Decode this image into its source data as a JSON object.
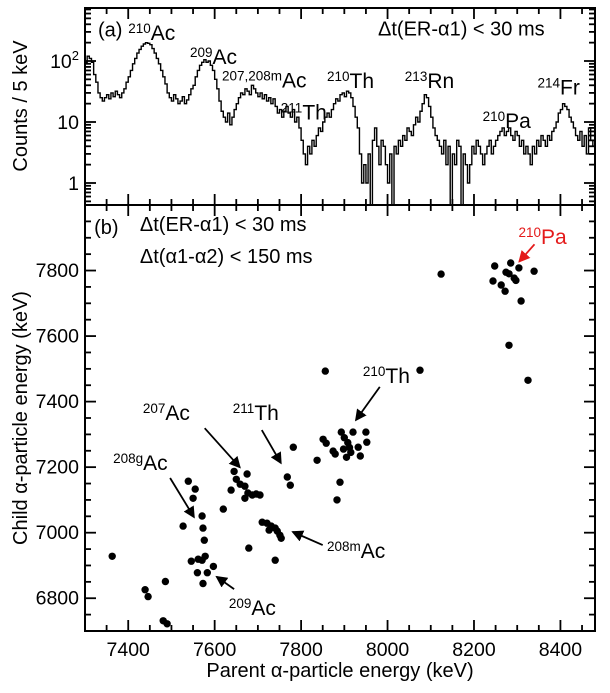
{
  "figure": {
    "background": "#ffffff",
    "ink_color": "#000000",
    "accent_red": "#e41a1a"
  },
  "chart_data": [
    {
      "type": "line",
      "panel": "a",
      "subtype": "histogram-steps",
      "ylabel": "Counts / 5 keV",
      "xlabel": "",
      "xlim": [
        7300,
        8480
      ],
      "ylog_range": [
        0.44,
        740
      ],
      "x_major_ticks": [
        7400,
        7600,
        7800,
        8000,
        8200,
        8400
      ],
      "x_minor_step": 50,
      "y_ticks": [
        {
          "value": 100,
          "label_main": "10",
          "label_sup": "2"
        },
        {
          "value": 10,
          "label_main": "10",
          "label_sup": ""
        },
        {
          "value": 1,
          "label_main": "1",
          "label_sup": ""
        }
      ],
      "histogram": {
        "bin_start": 7300,
        "bin_width": 5,
        "counts": [
          95,
          120,
          110,
          95,
          60,
          45,
          30,
          25,
          22,
          25,
          28,
          24,
          30,
          26,
          32,
          28,
          25,
          30,
          35,
          45,
          55,
          70,
          90,
          110,
          135,
          155,
          175,
          190,
          200,
          195,
          185,
          160,
          135,
          110,
          90,
          70,
          55,
          42,
          30,
          25,
          22,
          28,
          24,
          20,
          22,
          26,
          20,
          23,
          28,
          35,
          40,
          55,
          70,
          85,
          95,
          105,
          95,
          100,
          85,
          70,
          50,
          35,
          22,
          15,
          12,
          10,
          14,
          9,
          12,
          16,
          20,
          25,
          30,
          28,
          35,
          32,
          28,
          40,
          35,
          30,
          26,
          30,
          24,
          28,
          22,
          25,
          20,
          24,
          18,
          14,
          16,
          12,
          15,
          18,
          14,
          12,
          16,
          10,
          12,
          8,
          5,
          3,
          2,
          4,
          3,
          5,
          4,
          6,
          8,
          7,
          10,
          12,
          14,
          12,
          16,
          20,
          24,
          22,
          28,
          30,
          26,
          32,
          30,
          25,
          18,
          12,
          8,
          3,
          1,
          2,
          1,
          3,
          0,
          5,
          8,
          4,
          2,
          5,
          4,
          2,
          1,
          3,
          0,
          4,
          3,
          5,
          4,
          6,
          5,
          8,
          7,
          6,
          9,
          12,
          10,
          15,
          20,
          28,
          25,
          18,
          12,
          8,
          6,
          5,
          4,
          3,
          5,
          2,
          4,
          0,
          3,
          2,
          5,
          4,
          0,
          3,
          2,
          1,
          2,
          4,
          3,
          5,
          4,
          3,
          2,
          3,
          4,
          5,
          3,
          4,
          5,
          6,
          7,
          8,
          6,
          7,
          8,
          6,
          5,
          7,
          6,
          4,
          5,
          3,
          4,
          3,
          2,
          4,
          3,
          5,
          4,
          6,
          5,
          4,
          6,
          5,
          7,
          8,
          10,
          14,
          16,
          20,
          18,
          16,
          12,
          10,
          8,
          6,
          5,
          7,
          4,
          6,
          3,
          8,
          5,
          4
        ]
      },
      "annotations": [
        {
          "sup": "",
          "main": "(a)",
          "x": 7330,
          "y": 250
        },
        {
          "sup": "210",
          "main": "Ac",
          "x": 7400,
          "y": 220
        },
        {
          "sup": "209",
          "main": "Ac",
          "x": 7543,
          "y": 90
        },
        {
          "sup": "207,208m",
          "main": "Ac",
          "x": 7617,
          "y": 37
        },
        {
          "sup": "211",
          "main": "Th",
          "x": 7753,
          "y": 11
        },
        {
          "sup": "210",
          "main": "Th",
          "x": 7860,
          "y": 36
        },
        {
          "sup": "213",
          "main": "Rn",
          "x": 8040,
          "y": 36
        },
        {
          "sup": "210",
          "main": "Pa",
          "x": 8220,
          "y": 8
        },
        {
          "sup": "214",
          "main": "Fr",
          "x": 8347,
          "y": 28
        },
        {
          "sup": "",
          "main": "Δt(ER-α1) < 30 ms",
          "x": 7978,
          "y": 260
        }
      ]
    },
    {
      "type": "scatter",
      "panel": "b",
      "xlabel": "Parent α-particle energy (keV)",
      "ylabel": "Child α-particle energy (keV)",
      "xlim": [
        7300,
        8480
      ],
      "ylim": [
        6700,
        8000
      ],
      "x_major_ticks": [
        7400,
        7600,
        7800,
        8000,
        8200,
        8400
      ],
      "y_major_ticks": [
        6800,
        7000,
        7200,
        7400,
        7600,
        7800
      ],
      "minor_step": 50,
      "marker": {
        "shape": "circle",
        "radius": 3.7,
        "color": "#000000"
      },
      "points": [
        [
          8124,
          7789
        ],
        [
          8248,
          7814
        ],
        [
          8285,
          7823
        ],
        [
          8304,
          7808
        ],
        [
          8339,
          7798
        ],
        [
          8274,
          7795
        ],
        [
          8281,
          7790
        ],
        [
          8293,
          7777
        ],
        [
          8297,
          7770
        ],
        [
          8244,
          7768
        ],
        [
          8263,
          7756
        ],
        [
          8272,
          7737
        ],
        [
          8309,
          7707
        ],
        [
          8281,
          7572
        ],
        [
          8325,
          7465
        ],
        [
          7856,
          7493
        ],
        [
          8075,
          7496
        ],
        [
          7837,
          7221
        ],
        [
          7851,
          7285
        ],
        [
          7858,
          7273
        ],
        [
          7874,
          7249
        ],
        [
          7879,
          7240
        ],
        [
          7893,
          7307
        ],
        [
          7900,
          7290
        ],
        [
          7908,
          7275
        ],
        [
          7912,
          7260
        ],
        [
          7898,
          7255
        ],
        [
          7915,
          7245
        ],
        [
          7905,
          7230
        ],
        [
          7920,
          7307
        ],
        [
          7932,
          7261
        ],
        [
          7937,
          7234
        ],
        [
          7950,
          7307
        ],
        [
          7952,
          7276
        ],
        [
          7890,
          7154
        ],
        [
          7883,
          7100
        ],
        [
          7782,
          7261
        ],
        [
          7768,
          7170
        ],
        [
          7775,
          7145
        ],
        [
          7645,
          7187
        ],
        [
          7675,
          7179
        ],
        [
          7638,
          7130
        ],
        [
          7650,
          7163
        ],
        [
          7659,
          7148
        ],
        [
          7670,
          7142
        ],
        [
          7677,
          7121
        ],
        [
          7687,
          7115
        ],
        [
          7696,
          7118
        ],
        [
          7705,
          7115
        ],
        [
          7670,
          7105
        ],
        [
          7620,
          7072
        ],
        [
          7539,
          7157
        ],
        [
          7555,
          7133
        ],
        [
          7550,
          7105
        ],
        [
          7571,
          7051
        ],
        [
          7527,
          7020
        ],
        [
          7573,
          7014
        ],
        [
          7576,
          6977
        ],
        [
          7546,
          6913
        ],
        [
          7562,
          6919
        ],
        [
          7571,
          6916
        ],
        [
          7578,
          6928
        ],
        [
          7597,
          6897
        ],
        [
          7560,
          6878
        ],
        [
          7583,
          6878
        ],
        [
          7573,
          6845
        ],
        [
          7363,
          6928
        ],
        [
          7486,
          6851
        ],
        [
          7439,
          6826
        ],
        [
          7446,
          6805
        ],
        [
          7481,
          6731
        ],
        [
          7490,
          6722
        ],
        [
          7710,
          7032
        ],
        [
          7721,
          7029
        ],
        [
          7731,
          7020
        ],
        [
          7740,
          7014
        ],
        [
          7726,
          7008
        ],
        [
          7745,
          7005
        ],
        [
          7751,
          6992
        ],
        [
          7754,
          6983
        ],
        [
          7679,
          6953
        ],
        [
          7740,
          6916
        ]
      ],
      "annotations": [
        {
          "sup": "",
          "main": "(b)",
          "x": 7321,
          "y": 7911
        },
        {
          "sup": "",
          "main": "Δt(ER-α1) < 30 ms",
          "x": 7427,
          "y": 7921
        },
        {
          "sup": "",
          "main": "Δt(α1-α2) < 150 ms",
          "x": 7427,
          "y": 7823
        },
        {
          "sup": "210",
          "main": "Pa",
          "x": 8303,
          "y": 7881,
          "color": "#e41a1a"
        },
        {
          "sup": "207",
          "main": "Ac",
          "x": 7434,
          "y": 7344
        },
        {
          "sup": "211",
          "main": "Th",
          "x": 7642,
          "y": 7344
        },
        {
          "sup": "210",
          "main": "Th",
          "x": 7943,
          "y": 7457
        },
        {
          "sup": "208g",
          "main": "Ac",
          "x": 7365,
          "y": 7191
        },
        {
          "sup": "208m",
          "main": "Ac",
          "x": 7860,
          "y": 6923
        },
        {
          "sup": "209",
          "main": "Ac",
          "x": 7633,
          "y": 6749
        }
      ],
      "arrows": [
        {
          "name": "arrow-207ac",
          "from": [
            7577,
            7319
          ],
          "to": [
            7658,
            7200
          ]
        },
        {
          "name": "arrow-211th",
          "from": [
            7709,
            7313
          ],
          "to": [
            7753,
            7213
          ]
        },
        {
          "name": "arrow-210th",
          "from": [
            7982,
            7445
          ],
          "to": [
            7927,
            7344
          ]
        },
        {
          "name": "arrow-208gac",
          "from": [
            7497,
            7167
          ],
          "to": [
            7552,
            7048
          ]
        },
        {
          "name": "arrow-208mac",
          "from": [
            7850,
            6962
          ],
          "to": [
            7781,
            7002
          ]
        },
        {
          "name": "arrow-209ac",
          "from": [
            7645,
            6828
          ],
          "to": [
            7605,
            6865
          ]
        },
        {
          "name": "arrow-210pa-red",
          "from": [
            8340,
            7880
          ],
          "to": [
            8305,
            7828
          ],
          "color": "#e41a1a"
        }
      ]
    }
  ]
}
